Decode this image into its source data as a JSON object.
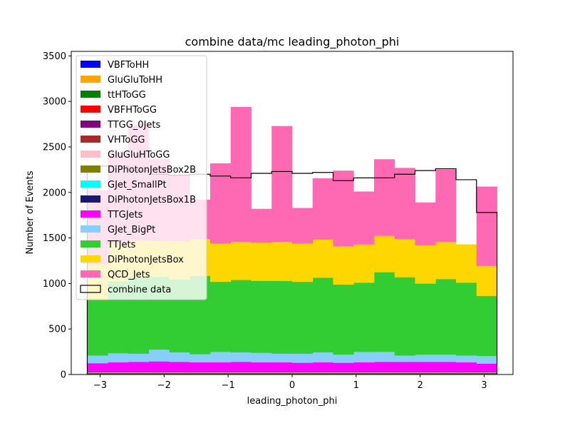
{
  "chart_data": {
    "type": "bar",
    "stacked": true,
    "title": "combine data/mc leading_photon_phi",
    "xlabel": "leading_photon_phi",
    "ylabel": "Number of Events",
    "xlim": [
      -3.45,
      3.45
    ],
    "ylim": [
      0,
      3550
    ],
    "xticks": [
      -3,
      -2,
      -1,
      0,
      1,
      2,
      3
    ],
    "xtick_labels": [
      "−3",
      "−2",
      "−1",
      "0",
      "1",
      "2",
      "3"
    ],
    "yticks": [
      0,
      500,
      1000,
      1500,
      2000,
      2500,
      3000,
      3500
    ],
    "ytick_labels": [
      "0",
      "500",
      "1000",
      "1500",
      "2000",
      "2500",
      "3000",
      "3500"
    ],
    "bin_edges": [
      -3.2,
      -2.88,
      -2.56,
      -2.24,
      -1.92,
      -1.6,
      -1.28,
      -0.96,
      -0.64,
      -0.32,
      0.0,
      0.32,
      0.64,
      0.96,
      1.28,
      1.6,
      1.92,
      2.24,
      2.56,
      2.88,
      3.2
    ],
    "legend_position": "upper-left",
    "series": [
      {
        "name": "VBFToHH",
        "color": "#0000ff",
        "values": [
          2,
          2,
          2,
          2,
          2,
          2,
          2,
          2,
          2,
          2,
          2,
          2,
          2,
          2,
          2,
          2,
          2,
          2,
          2,
          2
        ]
      },
      {
        "name": "GluGluToHH",
        "color": "#ffa500",
        "values": [
          3,
          3,
          3,
          3,
          3,
          3,
          3,
          3,
          3,
          3,
          3,
          3,
          3,
          3,
          3,
          3,
          3,
          3,
          3,
          3
        ]
      },
      {
        "name": "ttHToGG",
        "color": "#008000",
        "values": [
          4,
          4,
          4,
          4,
          4,
          4,
          4,
          4,
          4,
          4,
          4,
          4,
          4,
          4,
          4,
          4,
          4,
          4,
          4,
          4
        ]
      },
      {
        "name": "VBFHToGG",
        "color": "#ff0000",
        "values": [
          3,
          3,
          3,
          3,
          3,
          3,
          3,
          3,
          3,
          3,
          3,
          3,
          3,
          3,
          3,
          3,
          3,
          3,
          3,
          3
        ]
      },
      {
        "name": "TTGG_0Jets",
        "color": "#800080",
        "values": [
          3,
          3,
          3,
          3,
          3,
          3,
          3,
          3,
          3,
          3,
          3,
          3,
          3,
          3,
          3,
          3,
          3,
          3,
          3,
          3
        ]
      },
      {
        "name": "VHToGG",
        "color": "#a52a2a",
        "values": [
          2,
          2,
          2,
          2,
          2,
          2,
          2,
          2,
          2,
          2,
          2,
          2,
          2,
          2,
          2,
          2,
          2,
          2,
          2,
          2
        ]
      },
      {
        "name": "GluGluHToGG",
        "color": "#ffc0cb",
        "values": [
          5,
          5,
          5,
          5,
          5,
          5,
          5,
          5,
          5,
          5,
          5,
          5,
          5,
          5,
          5,
          5,
          5,
          5,
          5,
          5
        ]
      },
      {
        "name": "DiPhotonJetsBox2B",
        "color": "#808000",
        "values": [
          2,
          2,
          2,
          2,
          2,
          2,
          2,
          2,
          2,
          2,
          2,
          2,
          2,
          2,
          2,
          2,
          2,
          2,
          2,
          2
        ]
      },
      {
        "name": "GJet_SmallPt",
        "color": "#00ffff",
        "values": [
          3,
          3,
          3,
          3,
          3,
          3,
          3,
          3,
          3,
          3,
          3,
          3,
          3,
          3,
          3,
          3,
          3,
          3,
          3,
          3
        ]
      },
      {
        "name": "DiPhotonJetsBox1B",
        "color": "#191970",
        "values": [
          3,
          3,
          3,
          3,
          3,
          3,
          3,
          3,
          3,
          3,
          3,
          3,
          3,
          3,
          3,
          3,
          3,
          3,
          3,
          3
        ]
      },
      {
        "name": "TTGJets",
        "color": "#ff00ff",
        "values": [
          95,
          105,
          110,
          115,
          110,
          105,
          105,
          110,
          105,
          105,
          100,
          105,
          100,
          105,
          110,
          110,
          110,
          110,
          105,
          90
        ]
      },
      {
        "name": "GJet_BigPt",
        "color": "#87cefa",
        "values": [
          85,
          100,
          90,
          130,
          105,
          90,
          115,
          105,
          105,
          95,
          100,
          110,
          90,
          115,
          110,
          70,
          80,
          80,
          75,
          85
        ]
      },
      {
        "name": "TTJets",
        "color": "#32cd32",
        "values": [
          610,
          790,
          840,
          800,
          800,
          860,
          770,
          795,
          790,
          800,
          790,
          820,
          770,
          760,
          875,
          860,
          780,
          830,
          800,
          660
        ]
      },
      {
        "name": "DiPhotonJetsBox",
        "color": "#ffd700",
        "values": [
          395,
          420,
          405,
          395,
          420,
          405,
          420,
          420,
          420,
          430,
          420,
          420,
          420,
          420,
          400,
          420,
          420,
          410,
          420,
          330
        ]
      },
      {
        "name": "QCD_Jets",
        "color": "#ff69b4",
        "values": [
          810,
          1000,
          1270,
          900,
          730,
          430,
          880,
          1480,
          370,
          1270,
          390,
          670,
          830,
          580,
          840,
          780,
          470,
          790,
          0,
          870
        ]
      }
    ],
    "data_series": {
      "name": "combine data",
      "values": [
        2290,
        2290,
        2240,
        2200,
        2190,
        2200,
        2180,
        2160,
        2210,
        2230,
        2210,
        2220,
        2130,
        2160,
        2160,
        2200,
        2240,
        2260,
        2140,
        1780
      ]
    }
  }
}
